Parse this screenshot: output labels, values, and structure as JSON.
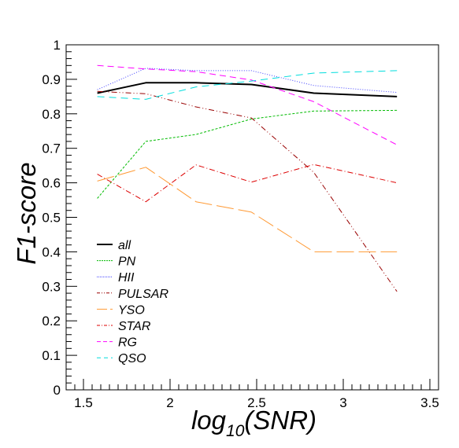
{
  "chart_data": {
    "type": "line",
    "title": "",
    "xlabel": "log",
    "xlabel_sub": "10",
    "xlabel_suffix": "(SNR)",
    "ylabel": "F1-score",
    "xlim": [
      1.4,
      3.55
    ],
    "ylim": [
      0,
      1
    ],
    "x_ticks": [
      1.5,
      2,
      2.5,
      3,
      3.5
    ],
    "x_tick_labels": [
      "1.5",
      "2",
      "2.5",
      "3",
      "3.5"
    ],
    "y_ticks": [
      0,
      0.1,
      0.2,
      0.3,
      0.4,
      0.5,
      0.6,
      0.7,
      0.8,
      0.9,
      1
    ],
    "y_tick_labels": [
      "0",
      "0.1",
      "0.2",
      "0.3",
      "0.4",
      "0.5",
      "0.6",
      "0.7",
      "0.8",
      "0.9",
      "1"
    ],
    "grid": false,
    "legend_position": "bottom-left",
    "x": [
      1.58,
      1.86,
      2.15,
      2.47,
      2.83,
      3.31
    ],
    "series": [
      {
        "name": "all",
        "color": "#000000",
        "dash": "solid",
        "width": 2,
        "values": [
          0.86,
          0.89,
          0.89,
          0.885,
          0.86,
          0.85
        ]
      },
      {
        "name": "PN",
        "color": "#00bb00",
        "dash": "3,2",
        "width": 1,
        "values": [
          0.555,
          0.72,
          0.74,
          0.785,
          0.808,
          0.81
        ]
      },
      {
        "name": "HII",
        "color": "#4040ff",
        "dash": "1,2",
        "width": 1,
        "values": [
          0.87,
          0.932,
          0.925,
          0.925,
          0.882,
          0.862
        ]
      },
      {
        "name": "PULSAR",
        "color": "#990000",
        "dash": "7,3,1,3,1,3",
        "width": 1,
        "values": [
          0.865,
          0.858,
          0.82,
          0.788,
          0.63,
          0.285
        ]
      },
      {
        "name": "YSO",
        "color": "#ff9933",
        "dash": "22,6",
        "width": 1,
        "values": [
          0.605,
          0.645,
          0.545,
          0.515,
          0.4,
          0.4
        ]
      },
      {
        "name": "STAR",
        "color": "#dd0000",
        "dash": "7,3,1,3",
        "width": 1,
        "values": [
          0.625,
          0.545,
          0.652,
          0.602,
          0.653,
          0.6
        ]
      },
      {
        "name": "RG",
        "color": "#ff00ff",
        "dash": "8,5",
        "width": 1,
        "values": [
          0.94,
          0.93,
          0.922,
          0.898,
          0.835,
          0.71
        ]
      },
      {
        "name": "QSO",
        "color": "#00dddd",
        "dash": "9,6",
        "width": 1,
        "values": [
          0.85,
          0.842,
          0.878,
          0.895,
          0.918,
          0.925
        ]
      }
    ]
  }
}
